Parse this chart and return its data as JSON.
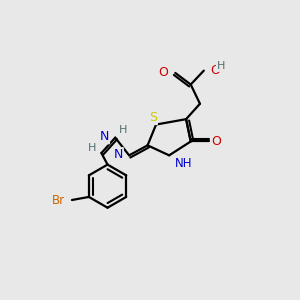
{
  "background_color": "#e8e8e8",
  "atom_colors": {
    "C": "#000000",
    "H": "#507070",
    "O": "#cc0000",
    "N": "#0000cc",
    "S": "#cccc00",
    "Br": "#cc6600"
  },
  "figsize": [
    3.0,
    3.0
  ],
  "dpi": 100
}
